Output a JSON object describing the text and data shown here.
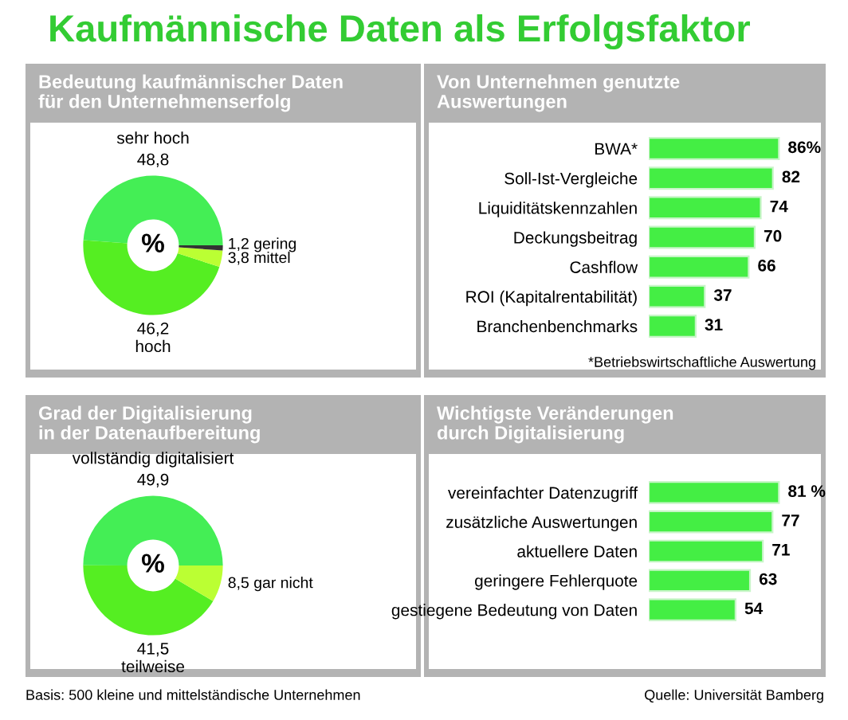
{
  "chart_data": [
    {
      "type": "donut",
      "title": "Bedeutung kaufmännischer Daten\nfür den Unternehmenserfolg",
      "categories": [
        "sehr hoch",
        "hoch",
        "mittel",
        "gering"
      ],
      "values": [
        48.8,
        46.2,
        3.8,
        1.2
      ],
      "colors": [
        "#44ee55",
        "#55ee22",
        "#bbff33",
        "#333333"
      ],
      "value_labels": [
        "48,8",
        "46,2",
        "3,8",
        "1,2"
      ],
      "annotations": [
        "Kaufmännische Daten als Erfolgsfaktor",
        {
          "text": "%"
        }
      ]
    },
    {
      "type": "bar",
      "orientation": "horizontal",
      "title": "Von Unternehmen genutzte\nAuswertungen",
      "categories": [
        "BWA*",
        "Soll-Ist-Vergleiche",
        "Liquiditätskennzahlen",
        "Deckungsbeitrag",
        "Cashflow",
        "ROI (Kapitalrentabilität)",
        "Branchenbenchmarks"
      ],
      "values": [
        86,
        82,
        74,
        70,
        66,
        37,
        31
      ],
      "color": "#44ee44",
      "value_labels": [
        "86%",
        "82",
        "74",
        "70",
        "66",
        "37",
        "31"
      ],
      "annotations": [
        "*Betriebswirtschaftliche Auswertung"
      ]
    },
    {
      "type": "donut",
      "title": "Grad der Digitalisierung\nin der Datenaufbereitung",
      "categories": [
        "vollständig digitalisiert",
        "teilweise",
        "gar nicht"
      ],
      "values": [
        49.9,
        41.5,
        8.5
      ],
      "colors": [
        "#44ee55",
        "#55ee22",
        "#bbff33"
      ],
      "value_labels": [
        "49,9",
        "41,5",
        "8,5"
      ],
      "annotations": [
        {
          "text": "%"
        },
        "Basis: 500 kleine und mittelständische Unternehmen"
      ]
    },
    {
      "type": "bar",
      "orientation": "horizontal",
      "title": "Wichtigste Veränderungen\ndurch Digitalisierung",
      "categories": [
        "vereinfachter Datenzugriff",
        "zusätzliche Auswertungen",
        "aktuellere Daten",
        "geringere Fehlerquote",
        "gestiegene Bedeutung von Daten"
      ],
      "values": [
        81,
        77,
        71,
        63,
        54
      ],
      "color": "#44ee44",
      "value_labels": [
        "81 %",
        "77",
        "71",
        "63",
        "54"
      ],
      "annotations": [
        "Quelle: Universität Bamberg"
      ]
    }
  ]
}
